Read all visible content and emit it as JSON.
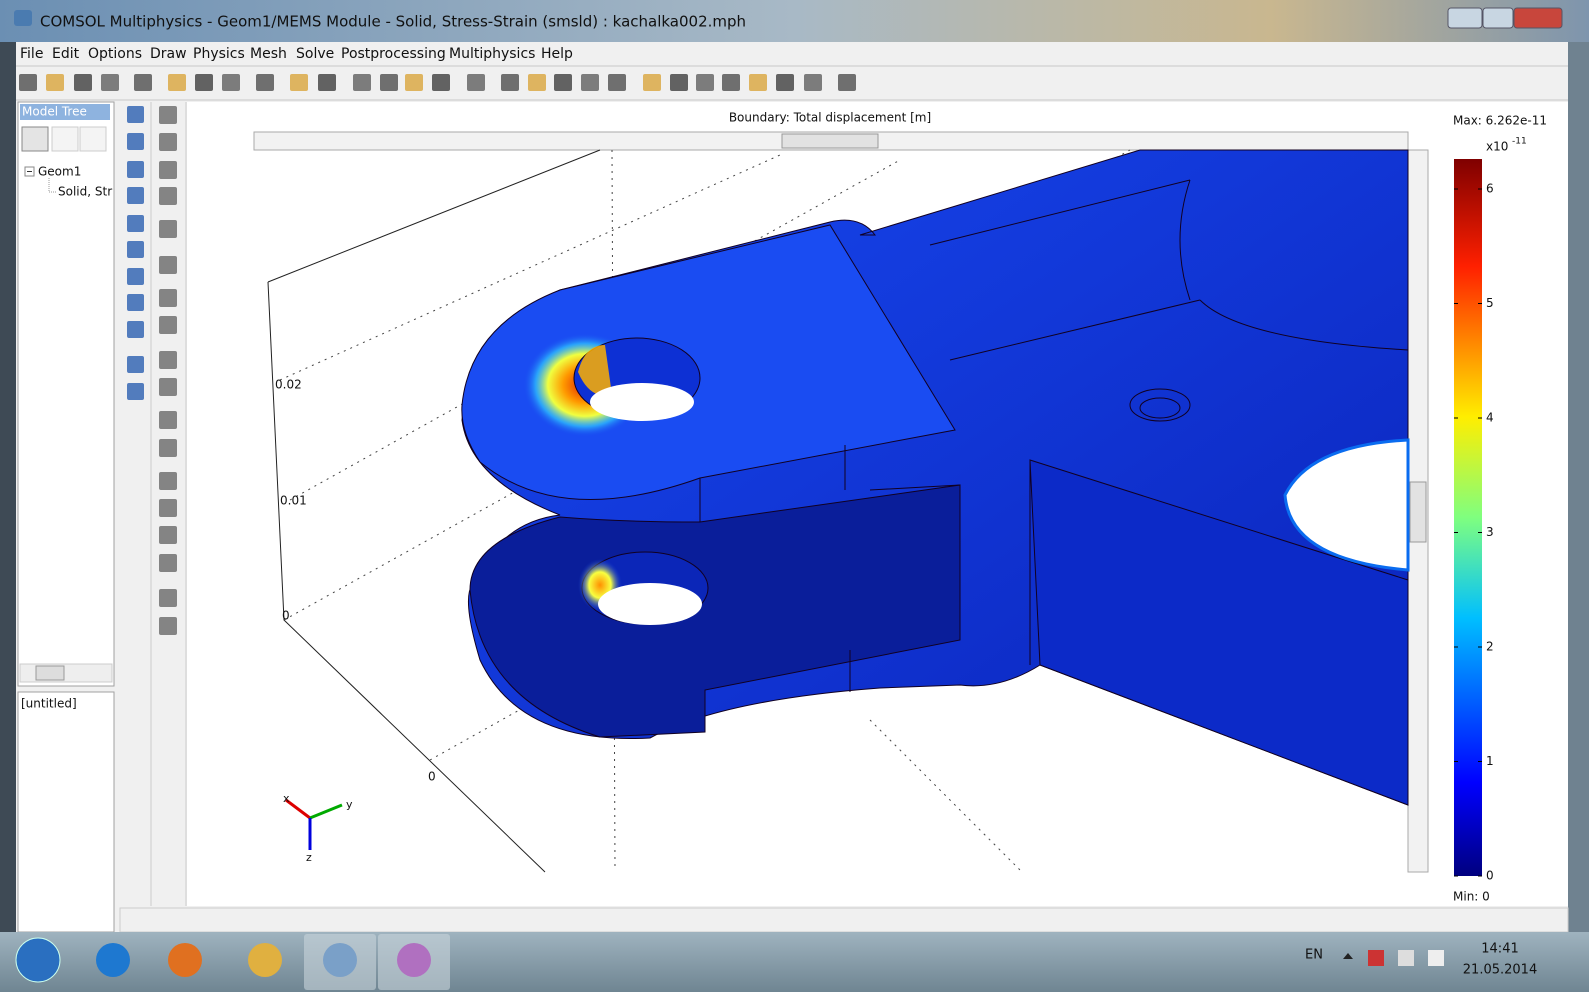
{
  "window": {
    "title": "COMSOL Multiphysics - Geom1/MEMS Module - Solid, Stress-Strain (smsld) : kachalka002.mph"
  },
  "menu": [
    "File",
    "Edit",
    "Options",
    "Draw",
    "Physics",
    "Mesh",
    "Solve",
    "Postprocessing",
    "Multiphysics",
    "Help"
  ],
  "model_tree": {
    "header": "Model Tree",
    "items": [
      "Geom1",
      "Solid, Str"
    ]
  },
  "notes_panel": {
    "text": "[untitled]"
  },
  "plot": {
    "title": "Boundary: Total displacement [m]",
    "axis_labels": [
      "0.02",
      "0.01",
      "0",
      "0"
    ],
    "triad": [
      "x",
      "y",
      "z"
    ]
  },
  "colorbar": {
    "max_label": "Max: 6.262e-11",
    "multiplier": "x10",
    "exponent": "-11",
    "range": [
      0,
      6.262
    ],
    "ticks": [
      0,
      1,
      2,
      3,
      4,
      5,
      6
    ],
    "min_label": "Min: 0"
  },
  "taskbar": {
    "language": "EN",
    "time": "14:41",
    "date": "21.05.2014"
  }
}
